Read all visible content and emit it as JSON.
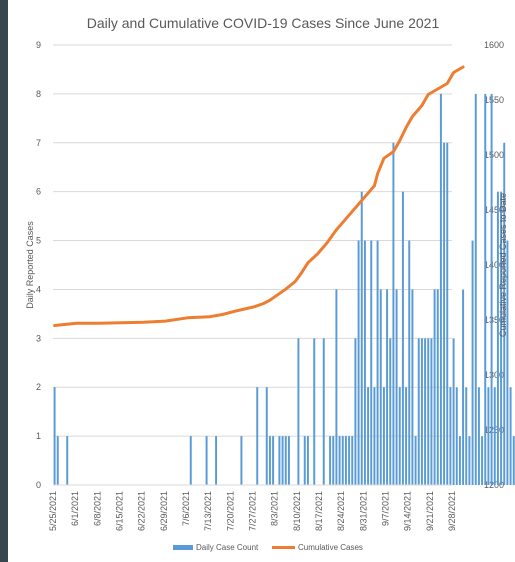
{
  "chart_data": {
    "type": "bar+line",
    "title": "Daily and Cumulative COVID-19 Cases Since June 2021",
    "ylabel_left": "Daily Reported Cases",
    "ylabel_right": "Cumulative Reported Cases to Date",
    "ylim_left": [
      0,
      9
    ],
    "ylim_right": [
      1200,
      1600
    ],
    "yticks_left": [
      "0",
      "1",
      "2",
      "3",
      "4",
      "5",
      "6",
      "7",
      "8",
      "9"
    ],
    "yticks_right": [
      "1200",
      "1250",
      "1300",
      "1350",
      "1400",
      "1450",
      "1500",
      "1550",
      "1600"
    ],
    "xticks": [
      "5/25/2021",
      "6/1/2021",
      "6/8/2021",
      "6/15/2021",
      "6/22/2021",
      "6/29/2021",
      "7/6/2021",
      "7/13/2021",
      "7/20/2021",
      "7/27/2021",
      "8/3/2021",
      "8/10/2021",
      "8/17/2021",
      "8/24/2021",
      "8/31/2021",
      "9/7/2021",
      "9/14/2021",
      "9/21/2021",
      "9/28/2021"
    ],
    "x_start": "5/25/2021",
    "grid": true,
    "legend_position": "bottom",
    "series": [
      {
        "name": "Daily Case Count",
        "type": "bar",
        "axis": "left",
        "color": "#5b9bd5",
        "values": [
          2,
          1,
          0,
          0,
          1,
          0,
          0,
          0,
          0,
          0,
          0,
          0,
          0,
          0,
          0,
          0,
          0,
          0,
          0,
          0,
          0,
          0,
          0,
          0,
          0,
          0,
          0,
          0,
          0,
          0,
          0,
          0,
          0,
          0,
          0,
          0,
          0,
          0,
          0,
          0,
          0,
          0,
          0,
          1,
          0,
          0,
          0,
          0,
          1,
          0,
          0,
          1,
          0,
          0,
          0,
          0,
          0,
          0,
          0,
          1,
          0,
          0,
          0,
          0,
          2,
          0,
          0,
          2,
          1,
          1,
          0,
          1,
          1,
          1,
          1,
          0,
          0,
          3,
          0,
          1,
          1,
          0,
          3,
          0,
          0,
          3,
          0,
          1,
          1,
          4,
          1,
          1,
          1,
          1,
          1,
          3,
          5,
          6,
          5,
          2,
          5,
          2,
          5,
          4,
          2,
          4,
          3,
          7,
          4,
          2,
          6,
          2,
          5,
          4,
          1,
          3,
          3,
          3,
          3,
          3,
          4,
          4,
          8,
          7,
          7,
          2,
          3,
          2,
          1,
          4,
          2,
          1,
          5,
          8,
          2,
          1,
          8,
          2,
          8,
          2,
          6,
          6,
          7,
          5,
          2,
          1,
          1,
          3,
          6,
          2,
          3,
          4
        ],
        "labels": [
          ""
        ]
      },
      {
        "name": "Cumulative Cases",
        "type": "line",
        "axis": "right",
        "color": "#ed7d31",
        "points": [
          [
            0,
            1345
          ],
          [
            7,
            1347
          ],
          [
            14,
            1347
          ],
          [
            21,
            1347.5
          ],
          [
            28,
            1348
          ],
          [
            35,
            1349
          ],
          [
            42,
            1352
          ],
          [
            49,
            1353
          ],
          [
            53,
            1355
          ],
          [
            57,
            1358
          ],
          [
            60,
            1360
          ],
          [
            63,
            1362
          ],
          [
            66,
            1365
          ],
          [
            68,
            1368
          ],
          [
            70,
            1372
          ],
          [
            73,
            1378
          ],
          [
            76,
            1385
          ],
          [
            78,
            1393
          ],
          [
            80,
            1402
          ],
          [
            83,
            1410
          ],
          [
            86,
            1420
          ],
          [
            89,
            1432
          ],
          [
            92,
            1442
          ],
          [
            95,
            1452
          ],
          [
            98,
            1462
          ],
          [
            101,
            1472
          ],
          [
            102,
            1483
          ],
          [
            104,
            1497
          ],
          [
            107,
            1503
          ],
          [
            109,
            1513
          ],
          [
            111,
            1525
          ],
          [
            113,
            1535
          ],
          [
            116,
            1545
          ],
          [
            118,
            1555
          ],
          [
            121,
            1560
          ],
          [
            124,
            1565
          ],
          [
            126,
            1575
          ],
          [
            129,
            1580
          ]
        ]
      }
    ]
  }
}
